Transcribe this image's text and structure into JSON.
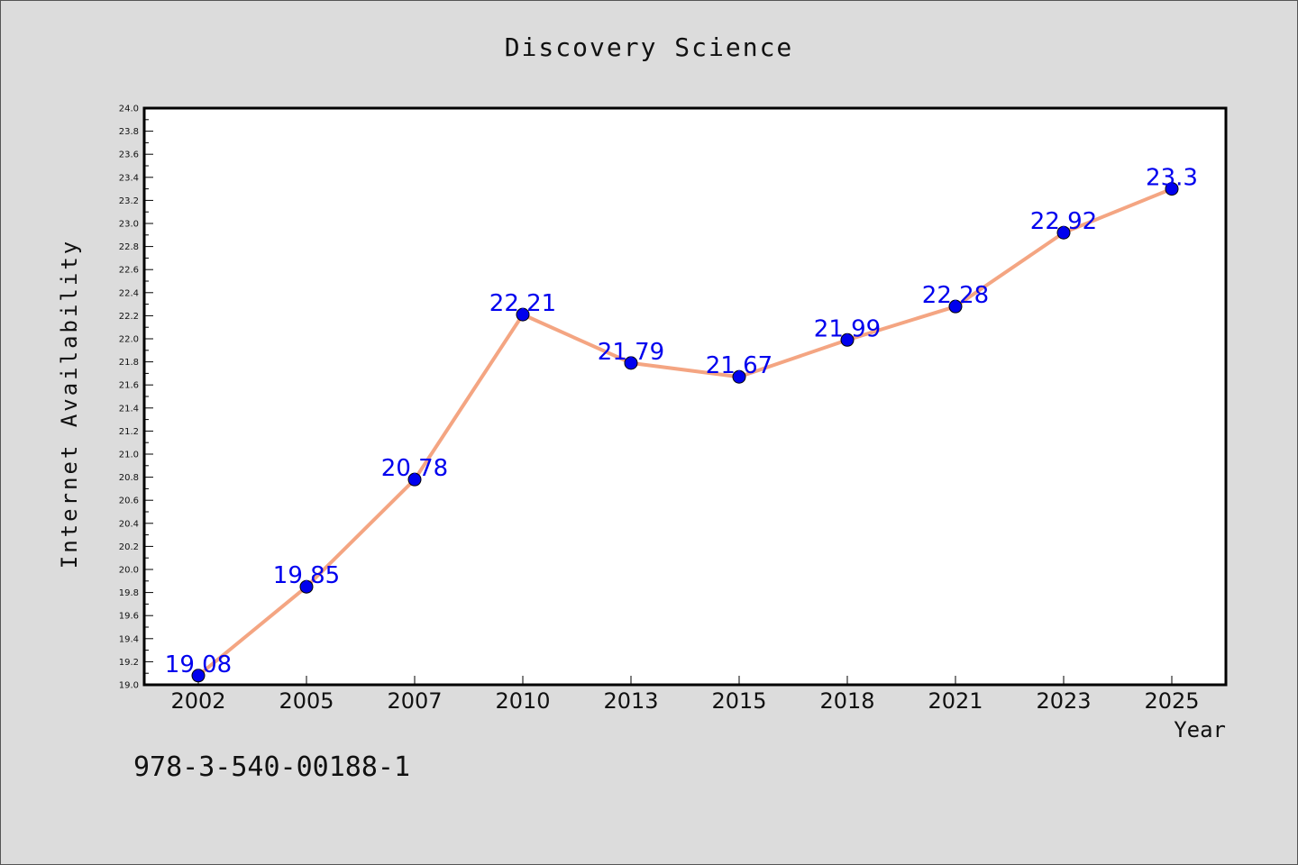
{
  "chart_data": {
    "type": "line",
    "title": "Discovery Science",
    "xlabel": "Year",
    "ylabel": "Internet Availability",
    "categories": [
      "2002",
      "2005",
      "2007",
      "2010",
      "2013",
      "2015",
      "2018",
      "2021",
      "2023",
      "2025"
    ],
    "series": [
      {
        "values": [
          19.08,
          19.85,
          20.78,
          22.21,
          21.79,
          21.67,
          21.99,
          22.28,
          22.92,
          23.3
        ],
        "data_labels": [
          "19.08",
          "19.85",
          "20.78",
          "22.21",
          "21.79",
          "21.67",
          "21.99",
          "22.28",
          "22.92",
          "23.3"
        ],
        "line_color": "#f4a582",
        "marker_color": "#0000ee",
        "label_color": "#0000ee"
      }
    ],
    "ylim": [
      19.0,
      24.0
    ],
    "y_ticks": [
      "19.0",
      "19.2",
      "19.4",
      "19.6",
      "19.8",
      "20.0",
      "20.2",
      "20.4",
      "20.6",
      "20.8",
      "21.0",
      "21.2",
      "21.4",
      "21.6",
      "21.8",
      "22.0",
      "22.2",
      "22.4",
      "22.6",
      "22.8",
      "23.0",
      "23.2",
      "23.4",
      "23.6",
      "23.8",
      "24.0"
    ],
    "grid": false,
    "legend": "none"
  },
  "footer": {
    "isbn": "978-3-540-00188-1"
  }
}
